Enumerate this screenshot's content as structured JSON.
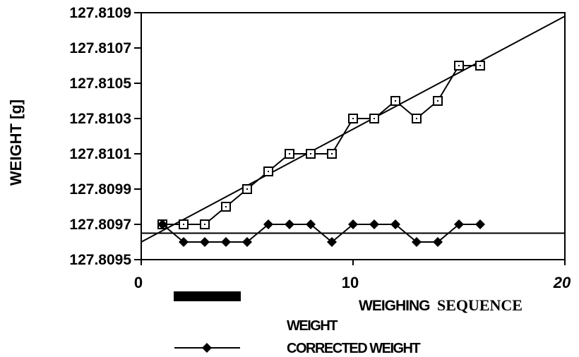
{
  "chart_data": {
    "type": "line",
    "ylabel": "WEIGHT [g]",
    "xlabel_part1": "WEIGHING",
    "xlabel_part2": "SEQUENCE",
    "xlim": [
      0,
      20
    ],
    "ylim": [
      127.8095,
      127.8109
    ],
    "x_ticks": [
      "0",
      "10",
      "20"
    ],
    "y_ticks": [
      "127.8109",
      "127.8107",
      "127.8105",
      "127.8103",
      "127.8101",
      "127.8099",
      "127.8097",
      "127.8095"
    ],
    "x": [
      1,
      2,
      3,
      4,
      5,
      6,
      7,
      8,
      9,
      10,
      11,
      12,
      13,
      14,
      15,
      16
    ],
    "series": [
      {
        "name": "WEIGHT",
        "marker": "open-square",
        "values": [
          127.8097,
          127.8097,
          127.8097,
          127.8098,
          127.8099,
          127.81,
          127.8101,
          127.8101,
          127.8101,
          127.8103,
          127.8103,
          127.8104,
          127.8103,
          127.8104,
          127.8106,
          127.8106
        ]
      },
      {
        "name": "CORRECTED WEIGHT",
        "marker": "filled-diamond",
        "values": [
          127.8097,
          127.8096,
          127.8096,
          127.8096,
          127.8096,
          127.8097,
          127.8097,
          127.8097,
          127.8096,
          127.8097,
          127.8097,
          127.8097,
          127.8096,
          127.8096,
          127.8097,
          127.8097
        ]
      }
    ],
    "fit_lines": [
      {
        "x": [
          0,
          20
        ],
        "y": [
          127.8096,
          127.81088
        ]
      },
      {
        "x": [
          0,
          20
        ],
        "y": [
          127.80965,
          127.80965
        ]
      }
    ],
    "legend_placement": "bottom",
    "grid": false
  }
}
